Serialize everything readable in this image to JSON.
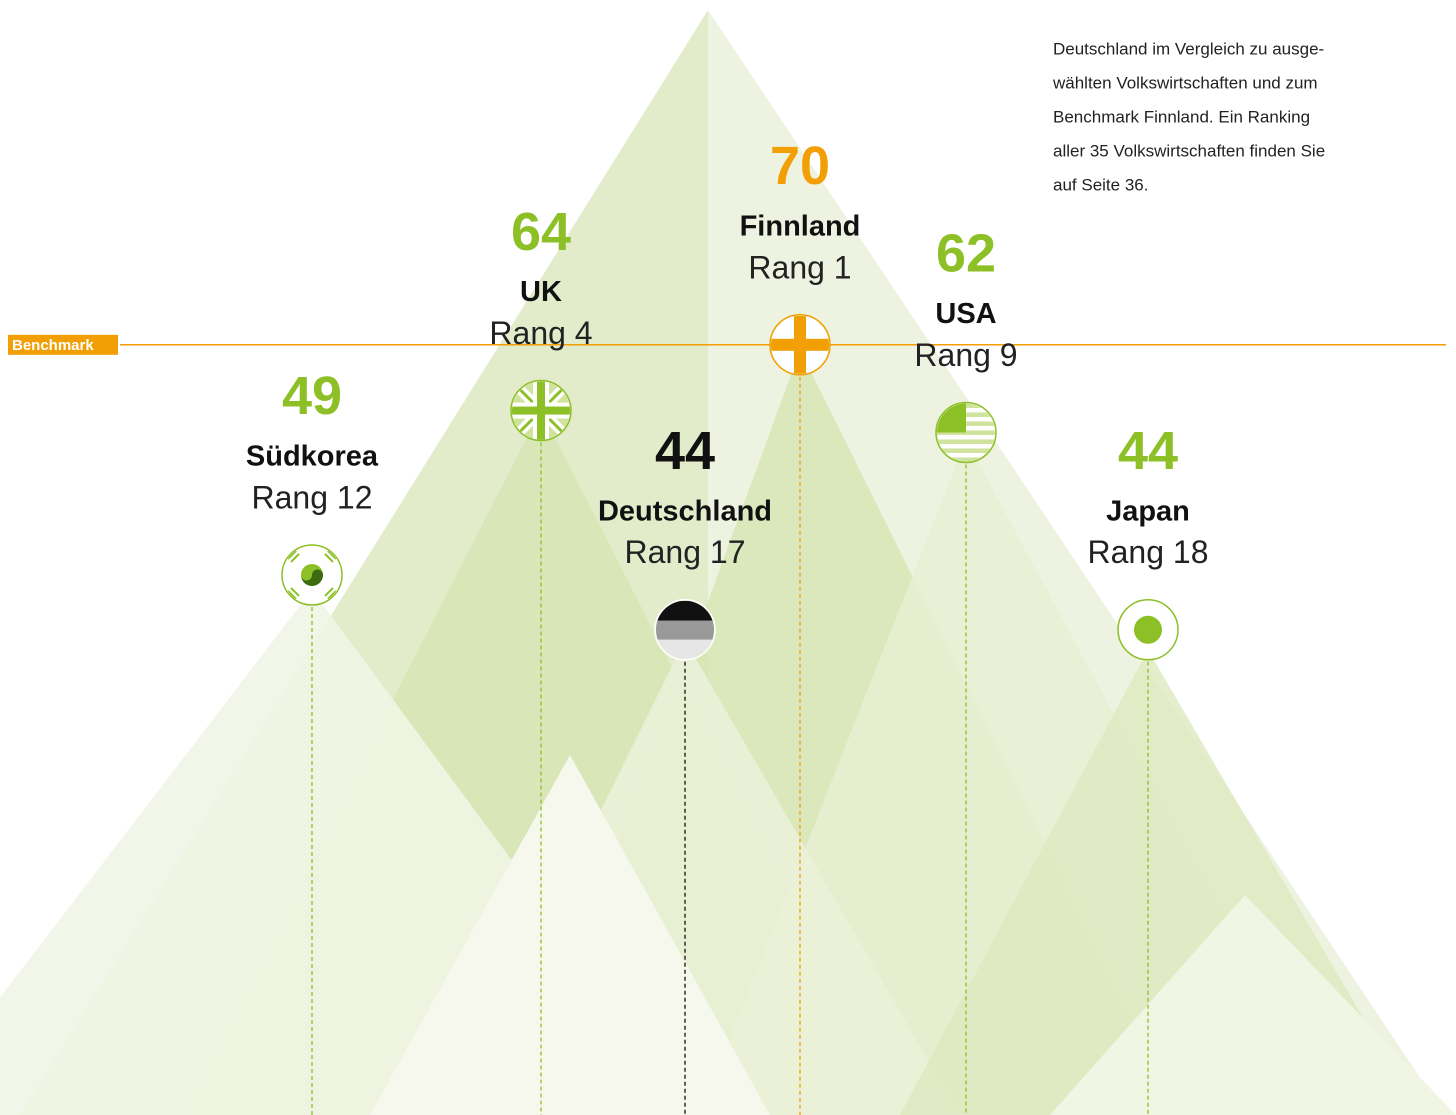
{
  "chart_data": {
    "type": "mountain",
    "note_lines": [
      "Deutschland im Vergleich zu ausge-",
      "wählten Volkswirtschaften und zum",
      "Benchmark Finnland. Ein Ranking",
      "aller 35 Volkswirtschaften finden Sie",
      "auf Seite 36."
    ],
    "benchmark_label": "Benchmark",
    "benchmark_color": "#f29f05",
    "categories": [
      "Südkorea",
      "UK",
      "Deutschland",
      "Finnland",
      "USA",
      "Japan"
    ],
    "ranks": [
      "Rang 12",
      "Rang 4",
      "Rang 17",
      "Rang 1",
      "Rang 9",
      "Rang 18"
    ],
    "values": [
      49,
      64,
      44,
      70,
      62,
      44
    ],
    "colors": [
      "#8dbf26",
      "#8dbf26",
      "#111111",
      "#f29f05",
      "#8dbf26",
      "#8dbf26"
    ]
  }
}
